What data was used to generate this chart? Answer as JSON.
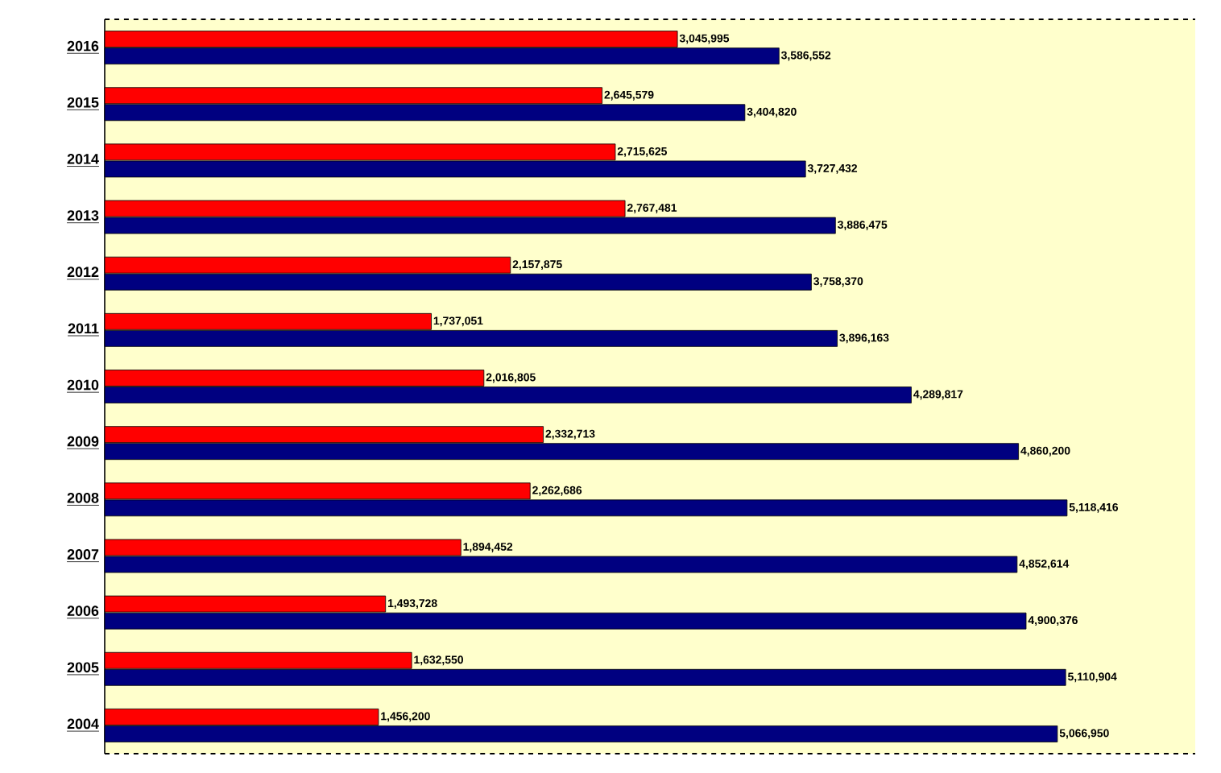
{
  "chart_data": {
    "type": "bar",
    "orientation": "horizontal",
    "categories": [
      "2016",
      "2015",
      "2014",
      "2013",
      "2012",
      "2011",
      "2010",
      "2009",
      "2008",
      "2007",
      "2006",
      "2005",
      "2004"
    ],
    "xlim": [
      0,
      5800000
    ],
    "tick_labels": "y",
    "series": [
      {
        "color": "#ff0000",
        "values": [
          3045995,
          2645579,
          2715625,
          2767481,
          2157875,
          1737051,
          2016805,
          2332713,
          2262686,
          1894452,
          1493728,
          1632550,
          1456200
        ],
        "value_labels": [
          "3,045,995",
          "2,645,579",
          "2,715,625",
          "2,767,481",
          "2,157,875",
          "1,737,051",
          "2,016,805",
          "2,332,713",
          "2,262,686",
          "1,894,452",
          "1,493,728",
          "1,632,550",
          "1,456,200"
        ]
      },
      {
        "color": "#000080",
        "values": [
          3586552,
          3404820,
          3727432,
          3886475,
          3758370,
          3896163,
          4289817,
          4860200,
          5118416,
          4852614,
          4900376,
          5110904,
          5066950
        ],
        "value_labels": [
          "3,586,552",
          "3,404,820",
          "3,727,432",
          "3,886,475",
          "3,758,370",
          "3,896,163",
          "4,289,817",
          "4,860,200",
          "5,118,416",
          "4,852,614",
          "4,900,376",
          "5,110,904",
          "5,066,950"
        ]
      }
    ]
  }
}
